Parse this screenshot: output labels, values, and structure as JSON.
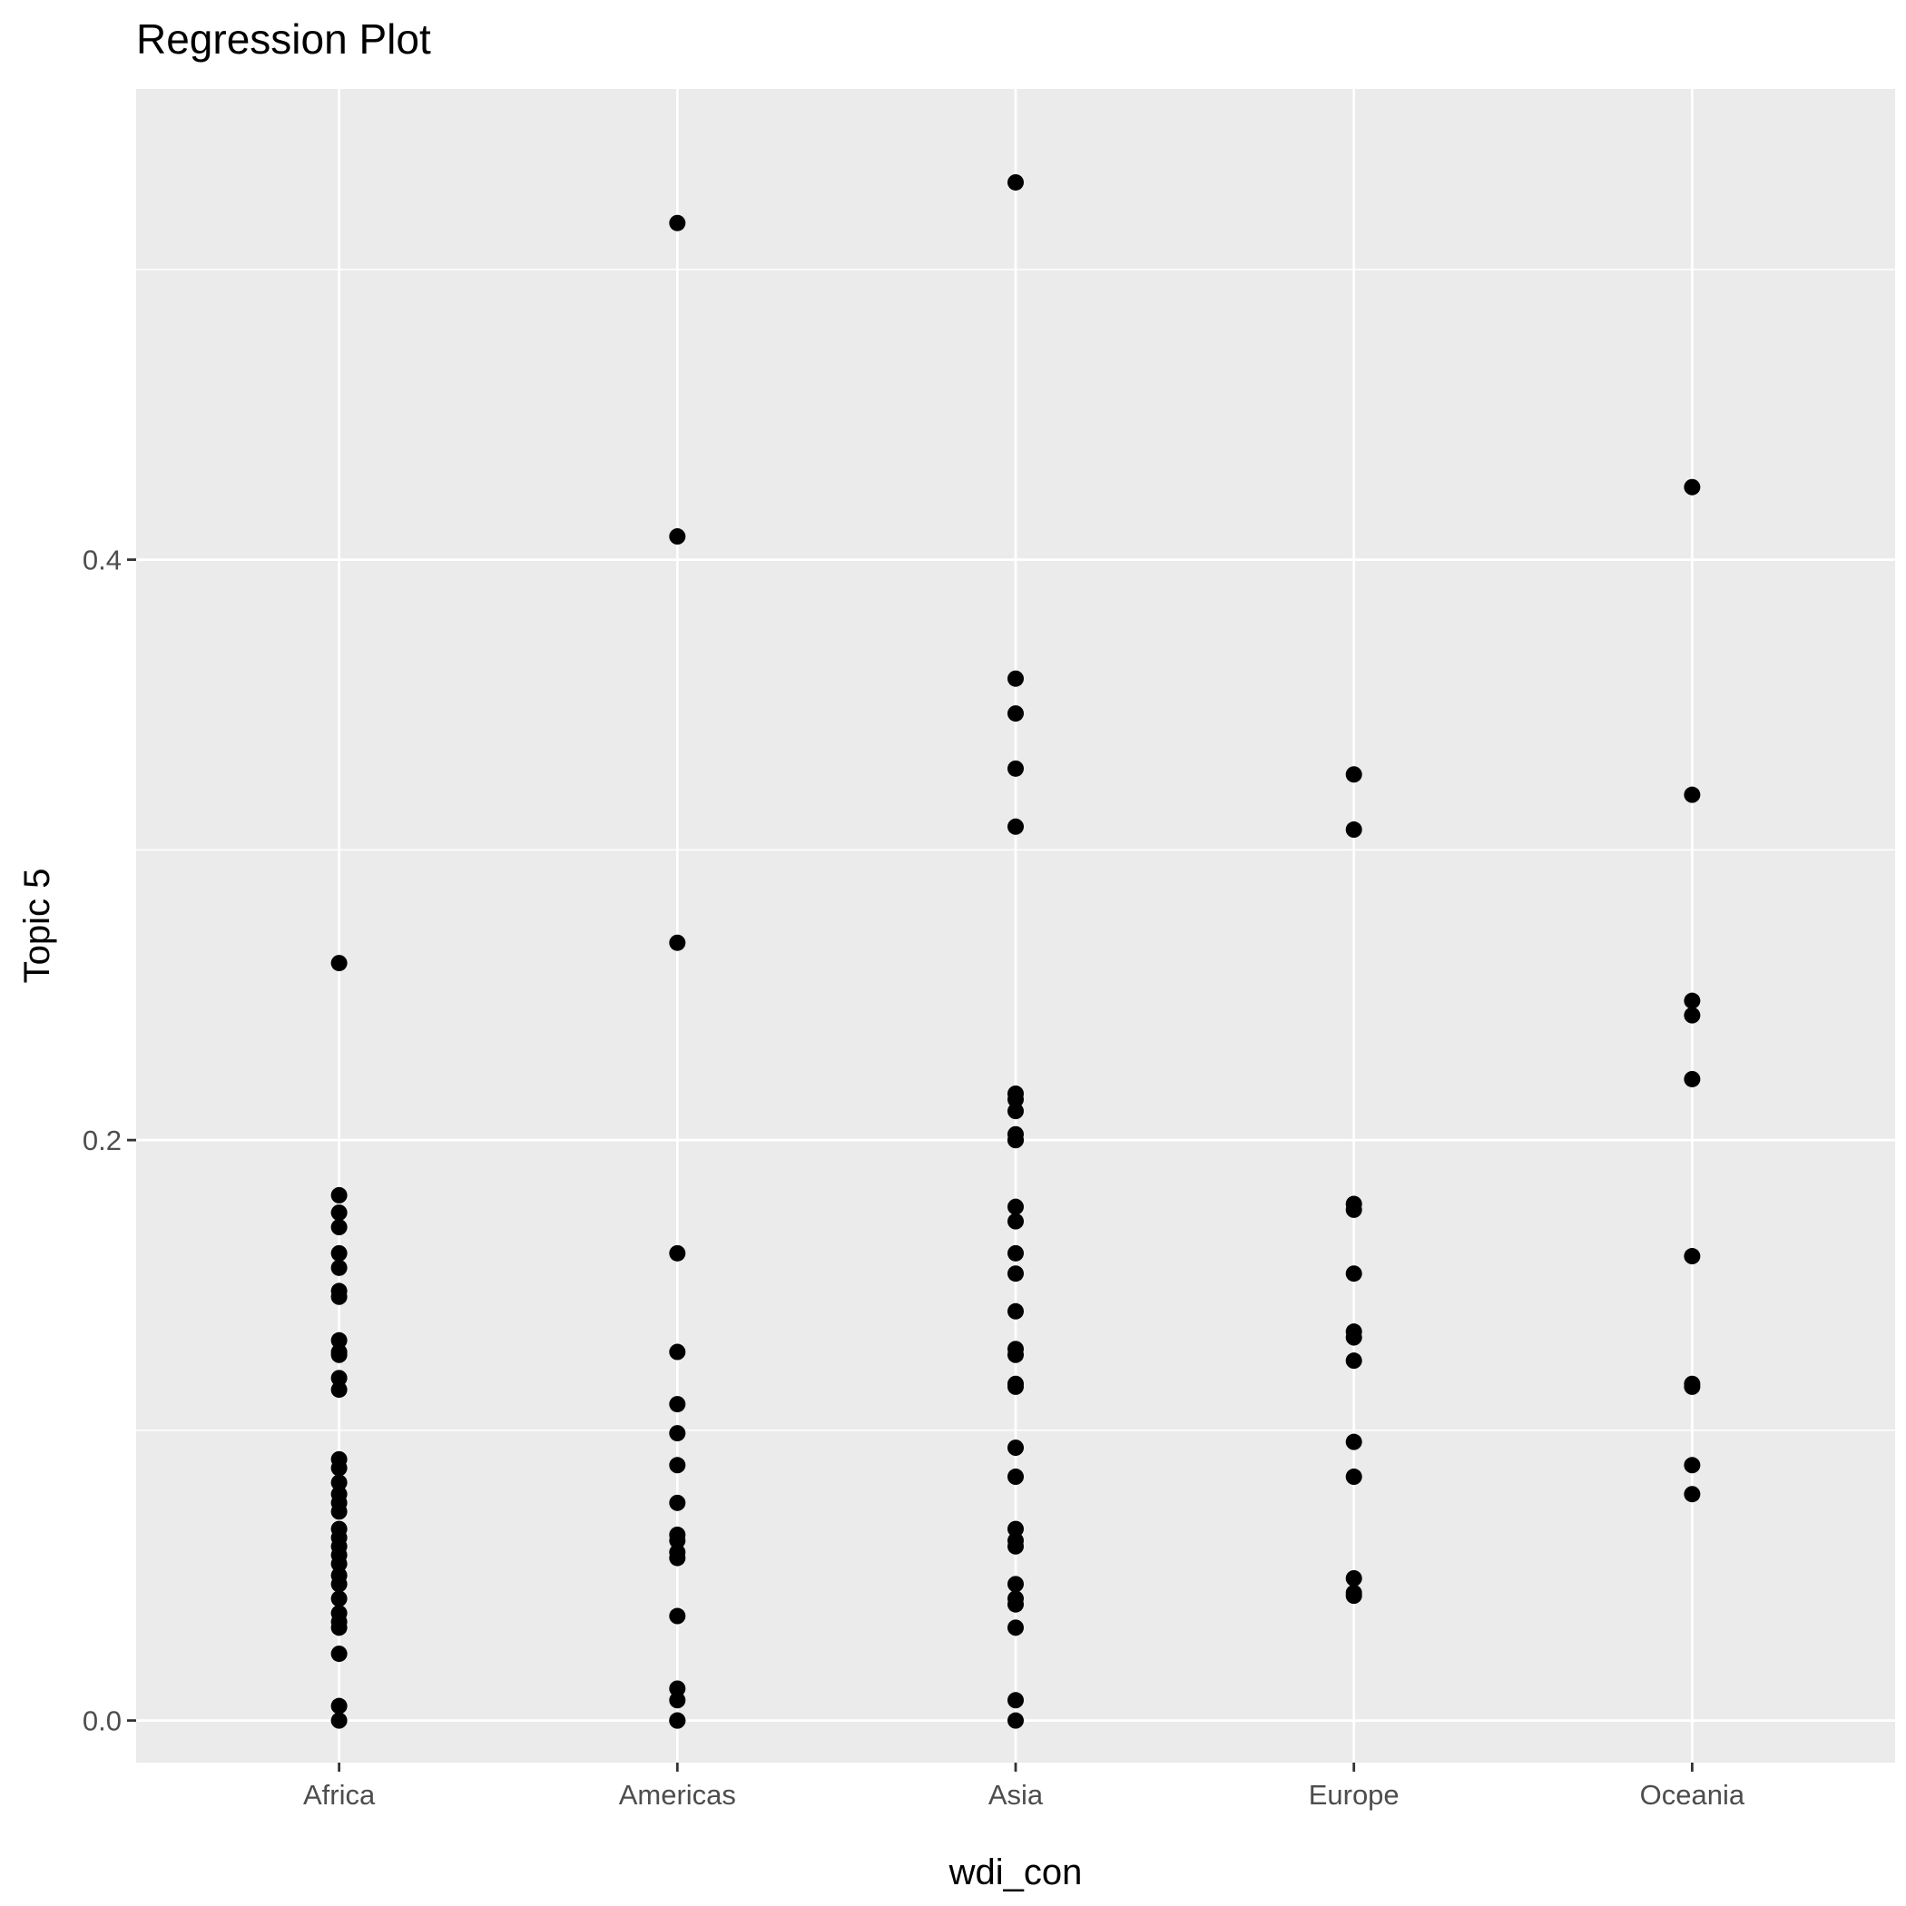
{
  "chart_data": {
    "type": "scatter",
    "title": "Regression Plot",
    "xlabel": "wdi_con",
    "ylabel": "Topic 5",
    "categories": [
      "Africa",
      "Americas",
      "Asia",
      "Europe",
      "Oceania"
    ],
    "y_ticks": [
      {
        "value": 0.0,
        "label": "0.0"
      },
      {
        "value": 0.2,
        "label": "0.2"
      },
      {
        "value": 0.4,
        "label": "0.4"
      }
    ],
    "y_minor_ticks": [
      0.1,
      0.3,
      0.5
    ],
    "ylim": [
      -0.0145,
      0.5622
    ],
    "grid": true,
    "point_color": "#000000",
    "panel_background": "#ebebeb",
    "grid_color": "#ffffff",
    "series": [
      {
        "category": "Africa",
        "values": [
          0.261,
          0.181,
          0.175,
          0.17,
          0.161,
          0.156,
          0.148,
          0.146,
          0.131,
          0.127,
          0.126,
          0.118,
          0.114,
          0.09,
          0.087,
          0.082,
          0.078,
          0.075,
          0.072,
          0.066,
          0.063,
          0.06,
          0.057,
          0.054,
          0.05,
          0.047,
          0.042,
          0.037,
          0.034,
          0.032,
          0.023,
          0.005,
          0.0
        ]
      },
      {
        "category": "Americas",
        "values": [
          0.516,
          0.408,
          0.268,
          0.161,
          0.127,
          0.109,
          0.099,
          0.088,
          0.075,
          0.064,
          0.062,
          0.058,
          0.056,
          0.036,
          0.011,
          0.007,
          0.0,
          0.0
        ]
      },
      {
        "category": "Asia",
        "values": [
          0.53,
          0.359,
          0.347,
          0.328,
          0.308,
          0.216,
          0.214,
          0.21,
          0.202,
          0.2,
          0.2,
          0.177,
          0.172,
          0.161,
          0.154,
          0.141,
          0.128,
          0.126,
          0.116,
          0.115,
          0.094,
          0.084,
          0.066,
          0.062,
          0.06,
          0.047,
          0.042,
          0.04,
          0.032,
          0.007,
          0.0
        ]
      },
      {
        "category": "Europe",
        "values": [
          0.326,
          0.307,
          0.178,
          0.176,
          0.154,
          0.134,
          0.132,
          0.124,
          0.096,
          0.084,
          0.049,
          0.044,
          0.043
        ]
      },
      {
        "category": "Oceania",
        "values": [
          0.425,
          0.319,
          0.248,
          0.243,
          0.221,
          0.16,
          0.116,
          0.115,
          0.088,
          0.078
        ]
      }
    ]
  }
}
